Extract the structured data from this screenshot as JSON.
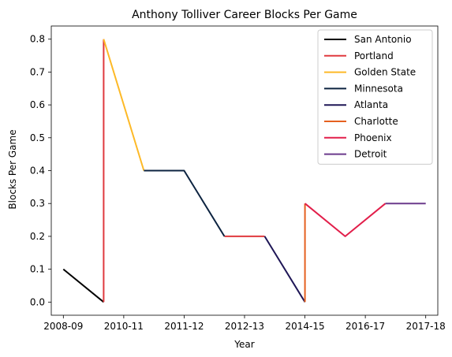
{
  "chart_data": {
    "type": "line",
    "title": "Anthony Tolliver Career Blocks Per Game",
    "xlabel": "Year",
    "ylabel": "Blocks Per Game",
    "x_tick_labels": [
      "2008-09",
      "2010-11",
      "2011-12",
      "2012-13",
      "2014-15",
      "2016-17",
      "2017-18"
    ],
    "y_ticks": [
      "0.0",
      "0.1",
      "0.2",
      "0.3",
      "0.4",
      "0.5",
      "0.6",
      "0.7",
      "0.8"
    ],
    "ylim": [
      -0.04,
      0.84
    ],
    "xlim": [
      -0.3,
      9.3
    ],
    "grid": false,
    "legend_position": "top-right",
    "series": [
      {
        "name": "San Antonio",
        "color": "#000000",
        "points": [
          [
            0,
            0.1
          ],
          [
            1,
            0.0
          ]
        ]
      },
      {
        "name": "Portland",
        "color": "#e03a3e",
        "points": [
          [
            1,
            0.0
          ],
          [
            1,
            0.8
          ]
        ]
      },
      {
        "name": "Golden State",
        "color": "#fdb927",
        "points": [
          [
            1,
            0.8
          ],
          [
            2,
            0.4
          ]
        ]
      },
      {
        "name": "Minnesota",
        "color": "#0c2340",
        "points": [
          [
            2,
            0.4
          ],
          [
            3,
            0.4
          ],
          [
            4,
            0.2
          ]
        ]
      },
      {
        "name": "Atlanta",
        "color": "#1e1656",
        "points": [
          [
            5,
            0.2
          ],
          [
            6,
            0.0
          ]
        ]
      },
      {
        "name": "Charlotte",
        "color": "#e56020",
        "points": [
          [
            6,
            0.0
          ],
          [
            6,
            0.3
          ]
        ]
      },
      {
        "name": "Phoenix",
        "color": "#e21e4a",
        "points": [
          [
            6,
            0.3
          ],
          [
            7,
            0.2
          ],
          [
            8,
            0.3
          ]
        ]
      },
      {
        "name": "Detroit",
        "color": "#6b3a8c",
        "points": [
          [
            8,
            0.3
          ],
          [
            9,
            0.3
          ]
        ]
      }
    ],
    "extra_segments": [
      {
        "color": "#e03a3e",
        "points": [
          [
            4,
            0.2
          ],
          [
            5,
            0.2
          ]
        ]
      }
    ]
  }
}
